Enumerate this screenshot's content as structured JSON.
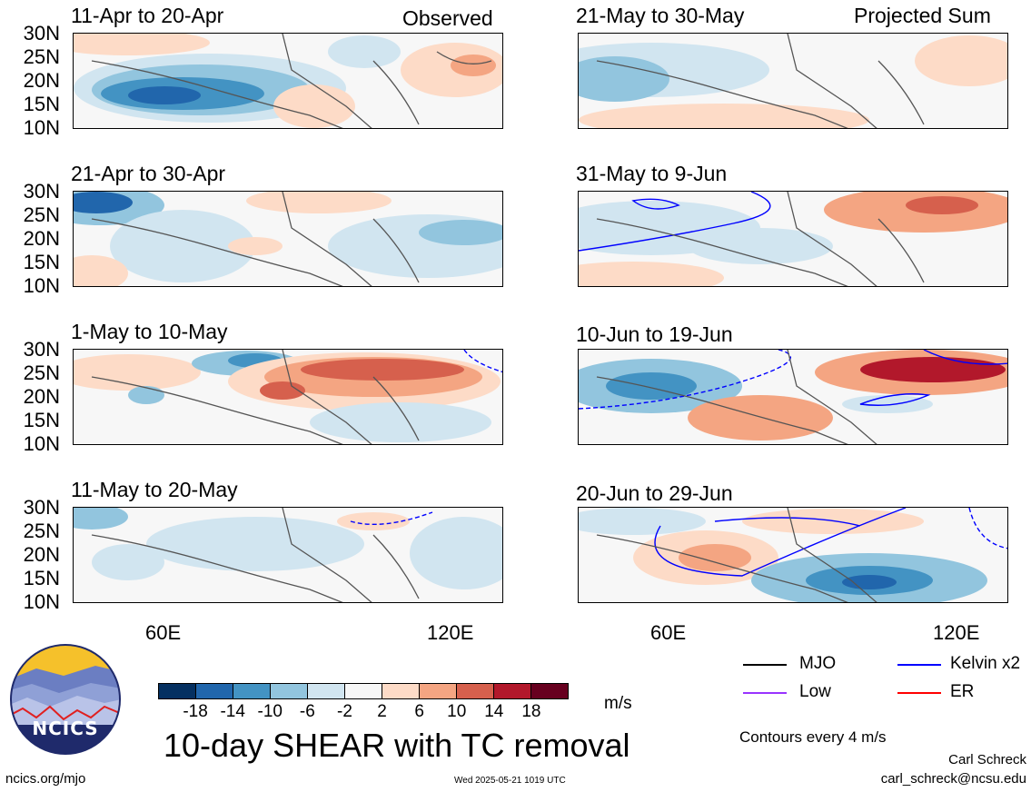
{
  "panels": [
    {
      "id": "p1",
      "title": "11-Apr to 20-Apr",
      "tag": "Observed"
    },
    {
      "id": "p2",
      "title": "21-Apr to 30-Apr",
      "tag": ""
    },
    {
      "id": "p3",
      "title": "1-May to 10-May",
      "tag": ""
    },
    {
      "id": "p4",
      "title": "11-May to 20-May",
      "tag": ""
    },
    {
      "id": "p5",
      "title": "21-May to 30-May",
      "tag": "Projected Sum"
    },
    {
      "id": "p6",
      "title": "31-May to 9-Jun",
      "tag": ""
    },
    {
      "id": "p7",
      "title": "10-Jun to 19-Jun",
      "tag": ""
    },
    {
      "id": "p8",
      "title": "20-Jun to 29-Jun",
      "tag": ""
    }
  ],
  "lat_labels": [
    "30N",
    "25N",
    "20N",
    "15N",
    "10N"
  ],
  "lon_labels": [
    "60E",
    "120E"
  ],
  "colorbar": {
    "ticks": [
      "-18",
      "-14",
      "-10",
      "-6",
      "-2",
      "2",
      "6",
      "10",
      "14",
      "18"
    ],
    "colors": [
      "#053061",
      "#2166ac",
      "#4393c3",
      "#92c5de",
      "#d1e5f0",
      "#f7f7f7",
      "#fddbc7",
      "#f4a582",
      "#d6604d",
      "#b2182b",
      "#67001f"
    ],
    "units": "m/s"
  },
  "legend": {
    "items": [
      {
        "label": "MJO",
        "color": "#000000"
      },
      {
        "label": "Kelvin x2",
        "color": "#0000ff"
      },
      {
        "label": "Low",
        "color": "#9933ff"
      },
      {
        "label": "ER",
        "color": "#ff0000"
      }
    ],
    "contour_note": "Contours every 4 m/s"
  },
  "logo": {
    "text": "NCICS"
  },
  "main_title": "10-day SHEAR with TC removal",
  "footer": {
    "url": "ncics.org/mjo",
    "timestamp": "Wed 2025-05-21 1019 UTC",
    "author": "Carl Schreck",
    "email": "carl_schreck@ncsu.edu"
  }
}
